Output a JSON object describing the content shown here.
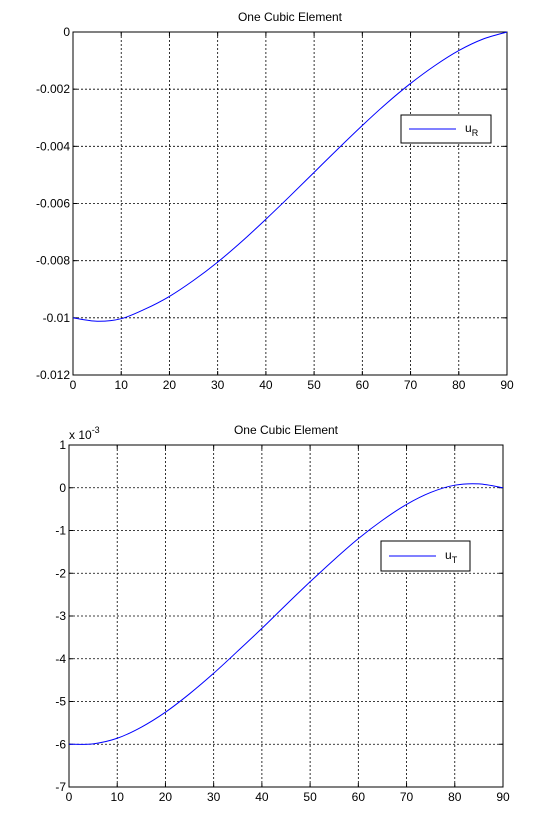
{
  "chart_data": [
    {
      "type": "line",
      "title": "One Cubic Element",
      "xlabel": "",
      "ylabel": "",
      "xlim": [
        0,
        90
      ],
      "ylim": [
        -0.012,
        0
      ],
      "x_ticks": [
        0,
        10,
        20,
        30,
        40,
        50,
        60,
        70,
        80,
        90
      ],
      "y_ticks": [
        0,
        -0.002,
        -0.004,
        -0.006,
        -0.008,
        -0.01,
        -0.012
      ],
      "y_tick_labels": [
        "0",
        "-0.002",
        "-0.004",
        "-0.006",
        "-0.008",
        "-0.01",
        "-0.012"
      ],
      "grid": true,
      "legend": {
        "position": "top-right",
        "label_main": "u",
        "label_sub": "R"
      },
      "series": [
        {
          "color": "#0000ff",
          "x": [
            0,
            5,
            10,
            15,
            20,
            25,
            30,
            35,
            40,
            45,
            50,
            55,
            60,
            65,
            70,
            75,
            80,
            85,
            90
          ],
          "y": [
            -0.01,
            -0.01012,
            -0.01003,
            -0.00969,
            -0.00925,
            -0.00869,
            -0.00805,
            -0.00733,
            -0.00655,
            -0.00574,
            -0.00491,
            -0.00408,
            -0.00327,
            -0.0025,
            -0.0018,
            -0.00118,
            -0.00065,
            -0.00025,
            0.0
          ]
        }
      ]
    },
    {
      "type": "line",
      "title": "One Cubic Element",
      "xlabel": "",
      "ylabel": "",
      "multiplier": {
        "base": "x 10",
        "exponent": "-3"
      },
      "xlim": [
        0,
        90
      ],
      "ylim": [
        -7,
        1
      ],
      "x_ticks": [
        0,
        10,
        20,
        30,
        40,
        50,
        60,
        70,
        80,
        90
      ],
      "y_ticks": [
        1,
        0,
        -1,
        -2,
        -3,
        -4,
        -5,
        -6,
        -7
      ],
      "y_tick_labels": [
        "1",
        "0",
        "-1",
        "-2",
        "-3",
        "-4",
        "-5",
        "-6",
        "-7"
      ],
      "grid": true,
      "legend": {
        "position": "right",
        "label_main": "u",
        "label_sub": "T"
      },
      "series": [
        {
          "color": "#0000ff",
          "x": [
            0,
            5,
            10,
            15,
            20,
            25,
            30,
            35,
            40,
            45,
            50,
            55,
            60,
            65,
            70,
            75,
            80,
            85,
            90
          ],
          "y": [
            -6.0,
            -5.99,
            -5.86,
            -5.6,
            -5.25,
            -4.82,
            -4.34,
            -3.82,
            -3.29,
            -2.74,
            -2.2,
            -1.68,
            -1.19,
            -0.76,
            -0.39,
            -0.11,
            0.06,
            0.09,
            0.0
          ]
        }
      ]
    }
  ]
}
